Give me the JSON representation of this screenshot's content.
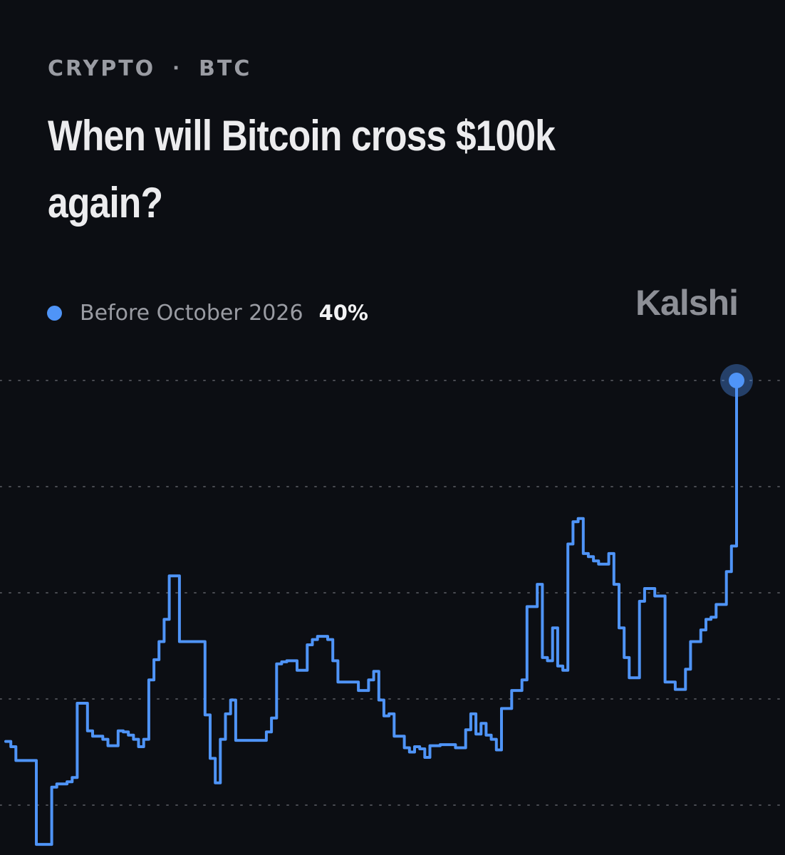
{
  "header": {
    "category": "CRYPTO",
    "separator": "·",
    "ticker": "BTC",
    "title": "When will Bitcoin cross $100k again?"
  },
  "legend": {
    "label": "Before October 2026",
    "value": "40%"
  },
  "brand": {
    "name": "Kalshi"
  },
  "colors": {
    "background": "#0c0e13",
    "line": "#4f94f7",
    "grid": "#4a4c52",
    "text_primary": "#ececee",
    "text_secondary": "#9a9ca3"
  },
  "chart_data": {
    "type": "line",
    "line_shape": "step",
    "ylim": [
      0,
      40
    ],
    "grid": true,
    "grid_style": "dotted",
    "legend_position": "top-left",
    "y_gridlines": [
      0,
      10,
      20,
      30,
      40
    ],
    "series": [
      {
        "name": "Before October 2026",
        "values": [
          6,
          5.5,
          4.2,
          4.2,
          4.2,
          4.2,
          -3.7,
          -3.7,
          -3.7,
          1.7,
          2.0,
          2.0,
          2.2,
          2.6,
          9.6,
          9.6,
          7.0,
          6.5,
          6.5,
          6.2,
          5.6,
          5.6,
          7.0,
          6.9,
          6.6,
          6.2,
          5.5,
          6.2,
          11.8,
          13.7,
          15.4,
          17.5,
          21.6,
          21.6,
          15.4,
          15.4,
          15.4,
          15.4,
          15.4,
          8.5,
          4.4,
          2.1,
          6.2,
          8.6,
          9.9,
          6.1,
          6.1,
          6.1,
          6.1,
          6.1,
          6.1,
          6.9,
          8.2,
          13.3,
          13.5,
          13.6,
          13.6,
          12.7,
          12.7,
          15.1,
          15.6,
          15.9,
          15.9,
          15.6,
          13.6,
          11.6,
          11.6,
          11.6,
          11.6,
          10.8,
          10.8,
          11.8,
          12.6,
          9.9,
          8.4,
          8.6,
          6.5,
          6.5,
          5.4,
          5.0,
          5.5,
          5.3,
          4.5,
          5.6,
          5.6,
          5.7,
          5.7,
          5.7,
          5.4,
          5.4,
          7.1,
          8.6,
          6.7,
          7.7,
          6.6,
          6.2,
          5.2,
          9.1,
          9.1,
          10.8,
          10.8,
          11.8,
          18.7,
          18.7,
          20.8,
          13.9,
          13.6,
          16.7,
          13.1,
          12.7,
          24.6,
          26.7,
          27.0,
          23.7,
          23.4,
          23.0,
          22.7,
          22.7,
          23.7,
          20.8,
          16.7,
          13.9,
          12.0,
          12.0,
          19.2,
          20.4,
          20.4,
          19.7,
          19.7,
          11.6,
          11.6,
          10.9,
          10.9,
          12.8,
          15.4,
          15.4,
          16.5,
          17.5,
          17.7,
          18.9,
          18.9,
          22.0,
          24.4,
          40
        ]
      }
    ]
  }
}
